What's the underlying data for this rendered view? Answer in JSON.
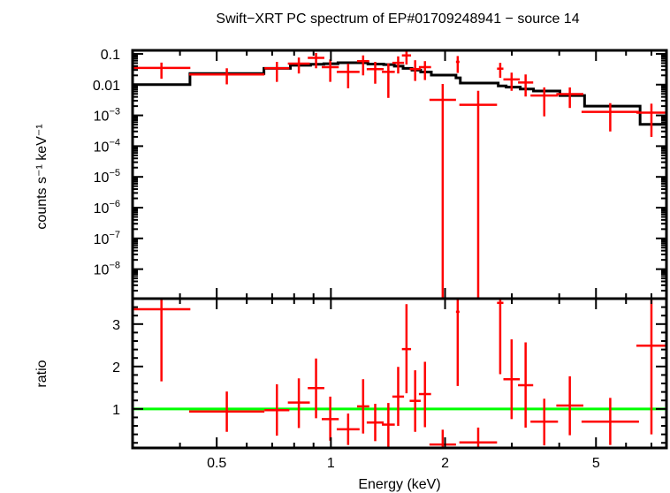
{
  "chart_data": [
    {
      "type": "scatter",
      "panel": "spectrum",
      "title": "Swift−XRT PC spectrum of EP#01709248941 − source 14",
      "ylabel": "counts s⁻¹ keV⁻¹",
      "xscale": "log",
      "yscale": "log",
      "xlim": [
        0.3,
        7.67
      ],
      "ylim": [
        1.1e-09,
        0.13
      ],
      "y_ticks": [
        {
          "value": 0.1,
          "label": "0.1"
        },
        {
          "value": 0.01,
          "label": "0.01"
        },
        {
          "value": 0.001,
          "base": "10",
          "exp": "−3"
        },
        {
          "value": 0.0001,
          "base": "10",
          "exp": "−4"
        },
        {
          "value": 1e-05,
          "base": "10",
          "exp": "−5"
        },
        {
          "value": 1e-06,
          "base": "10",
          "exp": "−6"
        },
        {
          "value": 1e-07,
          "base": "10",
          "exp": "−7"
        },
        {
          "value": 1e-08,
          "base": "10",
          "exp": "−8"
        }
      ],
      "data_color": "#ff0000",
      "model_color": "#000000",
      "data": [
        {
          "e": [
            0.3,
            0.426
          ],
          "y": 0.035,
          "lo": 0.0155,
          "hi": 0.052
        },
        {
          "e": [
            0.423,
            0.668
          ],
          "y": 0.0214,
          "lo": 0.0102,
          "hi": 0.034
        },
        {
          "e": [
            0.668,
            0.777
          ],
          "y": 0.034,
          "lo": 0.0123,
          "hi": 0.055
        },
        {
          "e": [
            0.77,
            0.88
          ],
          "y": 0.048,
          "lo": 0.023,
          "hi": 0.076
        },
        {
          "e": [
            0.869,
            0.961
          ],
          "y": 0.074,
          "lo": 0.034,
          "hi": 0.107
        },
        {
          "e": [
            0.946,
            1.049
          ],
          "y": 0.037,
          "lo": 0.0123,
          "hi": 0.066
        },
        {
          "e": [
            1.036,
            1.19
          ],
          "y": 0.026,
          "lo": 0.0076,
          "hi": 0.048
        },
        {
          "e": [
            1.172,
            1.262
          ],
          "y": 0.058,
          "lo": 0.02,
          "hi": 0.089
        },
        {
          "e": [
            1.243,
            1.378
          ],
          "y": 0.032,
          "lo": 0.0107,
          "hi": 0.055
        },
        {
          "e": [
            1.363,
            1.474
          ],
          "y": 0.026,
          "lo": 0.0037,
          "hi": 0.049
        },
        {
          "e": [
            1.452,
            1.559
          ],
          "y": 0.051,
          "lo": 0.023,
          "hi": 0.083
        },
        {
          "e": [
            1.539,
            1.627
          ],
          "y": 0.089,
          "lo": 0.045,
          "hi": 0.129
        },
        {
          "e": [
            1.613,
            1.725
          ],
          "y": 0.032,
          "lo": 0.0132,
          "hi": 0.062
        },
        {
          "e": [
            1.706,
            1.837
          ],
          "y": 0.037,
          "lo": 0.0141,
          "hi": 0.058
        },
        {
          "e": [
            1.819,
            2.137
          ],
          "y": 0.0032,
          "lo": null,
          "hi": 0.0105
        },
        {
          "e": [
            2.137,
            2.183
          ],
          "y": 0.055,
          "lo": 0.024,
          "hi": 0.085
        },
        {
          "e": [
            2.181,
            2.742
          ],
          "y": 0.0022,
          "lo": null,
          "hi": 0.0063
        },
        {
          "e": [
            2.742,
            2.85
          ],
          "y": 0.033,
          "lo": 0.0166,
          "hi": 0.051
        },
        {
          "e": [
            2.85,
            3.149
          ],
          "y": 0.0148,
          "lo": 0.0063,
          "hi": 0.0245
        },
        {
          "e": [
            3.115,
            3.415
          ],
          "y": 0.0117,
          "lo": 0.0041,
          "hi": 0.0214
        },
        {
          "e": [
            3.36,
            3.97
          ],
          "y": 0.0044,
          "lo": 0.00093,
          "hi": 0.0081
        },
        {
          "e": [
            3.93,
            4.63
          ],
          "y": 0.0049,
          "lo": 0.00174,
          "hi": 0.0081
        },
        {
          "e": [
            4.58,
            6.49
          ],
          "y": 0.0013,
          "lo": 0.0003,
          "hi": 0.0025
        },
        {
          "e": [
            6.39,
            7.67
          ],
          "y": 0.00123,
          "lo": 0.0002,
          "hi": 0.0024
        }
      ],
      "model": {
        "edges": [
          0.3,
          0.425,
          0.666,
          0.782,
          0.884,
          0.958,
          1.044,
          1.252,
          1.378,
          1.47,
          1.55,
          1.636,
          1.725,
          1.84,
          2.137,
          2.194,
          2.762,
          2.898,
          3.158,
          3.421,
          4.017,
          4.665,
          6.535,
          7.67
        ],
        "values": [
          0.01,
          0.0229,
          0.0339,
          0.0427,
          0.0457,
          0.0479,
          0.0513,
          0.0468,
          0.0447,
          0.0398,
          0.0339,
          0.0295,
          0.0257,
          0.0204,
          0.0166,
          0.0112,
          0.0091,
          0.0083,
          0.0072,
          0.0062,
          0.0044,
          0.002,
          0.00051
        ]
      }
    },
    {
      "type": "scatter",
      "panel": "ratio",
      "xlabel": "Energy (keV)",
      "ylabel": "ratio",
      "xscale": "log",
      "xlim": [
        0.3,
        7.67
      ],
      "ylim": [
        0.08,
        3.6
      ],
      "x_ticks": [
        {
          "value": 0.5,
          "label": "0.5"
        },
        {
          "value": 1,
          "label": "1"
        },
        {
          "value": 2,
          "label": "2"
        },
        {
          "value": 5,
          "label": "5"
        }
      ],
      "y_ticks": [
        {
          "value": 1,
          "label": "1"
        },
        {
          "value": 2,
          "label": "2"
        },
        {
          "value": 3,
          "label": "3"
        }
      ],
      "reference_line": {
        "value": 1,
        "color": "#00ff00"
      },
      "data_color": "#ff0000",
      "data": [
        {
          "y": 3.35,
          "lo": 1.65,
          "hi": null
        },
        {
          "y": 0.94,
          "lo": 0.46,
          "hi": 1.41
        },
        {
          "y": 0.97,
          "lo": 0.37,
          "hi": 1.58
        },
        {
          "y": 1.15,
          "lo": 0.55,
          "hi": 1.72
        },
        {
          "y": 1.49,
          "lo": 0.78,
          "hi": 2.19
        },
        {
          "y": 0.76,
          "lo": 0.25,
          "hi": 1.29
        },
        {
          "y": 0.52,
          "lo": 0.15,
          "hi": 0.89
        },
        {
          "y": 1.06,
          "lo": 0.42,
          "hi": 1.7
        },
        {
          "y": 0.68,
          "lo": 0.24,
          "hi": 1.12
        },
        {
          "y": 0.63,
          "lo": 0.07,
          "hi": 1.14
        },
        {
          "y": 1.29,
          "lo": 0.6,
          "hi": 1.99
        },
        {
          "y": 2.41,
          "lo": 1.37,
          "hi": 3.47
        },
        {
          "y": 1.19,
          "lo": 0.46,
          "hi": 1.91
        },
        {
          "y": 1.35,
          "lo": 0.57,
          "hi": 2.11
        },
        {
          "y": 0.16,
          "lo": null,
          "hi": 0.51
        },
        {
          "y": 3.29,
          "lo": 1.54,
          "hi": null
        },
        {
          "y": 0.21,
          "lo": null,
          "hi": 0.56
        },
        {
          "y": 3.5,
          "lo": 1.82,
          "hi": null
        },
        {
          "y": 1.7,
          "lo": 0.76,
          "hi": 2.64
        },
        {
          "y": 1.56,
          "lo": 0.56,
          "hi": 2.57
        },
        {
          "y": 0.7,
          "lo": 0.14,
          "hi": 1.24
        },
        {
          "y": 1.08,
          "lo": 0.38,
          "hi": 1.77
        },
        {
          "y": 0.7,
          "lo": 0.15,
          "hi": 1.26
        },
        {
          "y": 2.49,
          "lo": 0.4,
          "hi": null
        }
      ]
    }
  ]
}
